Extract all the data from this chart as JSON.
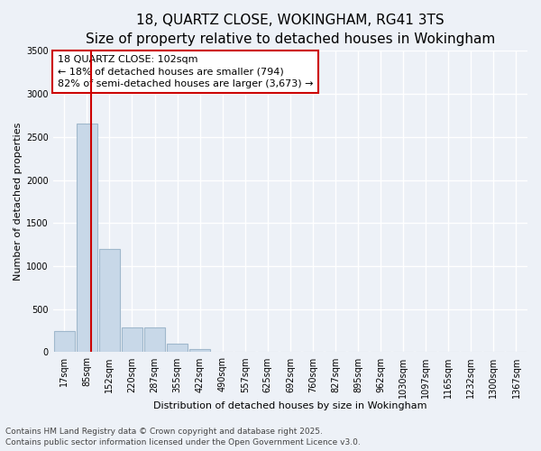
{
  "title_line1": "18, QUARTZ CLOSE, WOKINGHAM, RG41 3TS",
  "title_line2": "Size of property relative to detached houses in Wokingham",
  "xlabel": "Distribution of detached houses by size in Wokingham",
  "ylabel": "Number of detached properties",
  "bar_color": "#c8d8e8",
  "bar_edge_color": "#a0b8cc",
  "bins": [
    "17sqm",
    "85sqm",
    "152sqm",
    "220sqm",
    "287sqm",
    "355sqm",
    "422sqm",
    "490sqm",
    "557sqm",
    "625sqm",
    "692sqm",
    "760sqm",
    "827sqm",
    "895sqm",
    "962sqm",
    "1030sqm",
    "1097sqm",
    "1165sqm",
    "1232sqm",
    "1300sqm",
    "1367sqm"
  ],
  "values": [
    250,
    2650,
    1200,
    290,
    290,
    100,
    35,
    5,
    0,
    0,
    0,
    0,
    0,
    0,
    0,
    0,
    0,
    0,
    0,
    0,
    0
  ],
  "red_line_x": 1.18,
  "annotation_text_line1": "18 QUARTZ CLOSE: 102sqm",
  "annotation_text_line2": "← 18% of detached houses are smaller (794)",
  "annotation_text_line3": "82% of semi-detached houses are larger (3,673) →",
  "annotation_box_color": "#ffffff",
  "annotation_border_color": "#cc0000",
  "ylim": [
    0,
    3500
  ],
  "yticks": [
    0,
    500,
    1000,
    1500,
    2000,
    2500,
    3000,
    3500
  ],
  "footnote_line1": "Contains HM Land Registry data © Crown copyright and database right 2025.",
  "footnote_line2": "Contains public sector information licensed under the Open Government Licence v3.0.",
  "bg_color": "#edf1f7",
  "plot_bg_color": "#edf1f7",
  "grid_color": "#ffffff",
  "title_fontsize": 11,
  "subtitle_fontsize": 9.5,
  "axis_label_fontsize": 8,
  "tick_fontsize": 7,
  "footnote_fontsize": 6.5,
  "annotation_fontsize": 8
}
